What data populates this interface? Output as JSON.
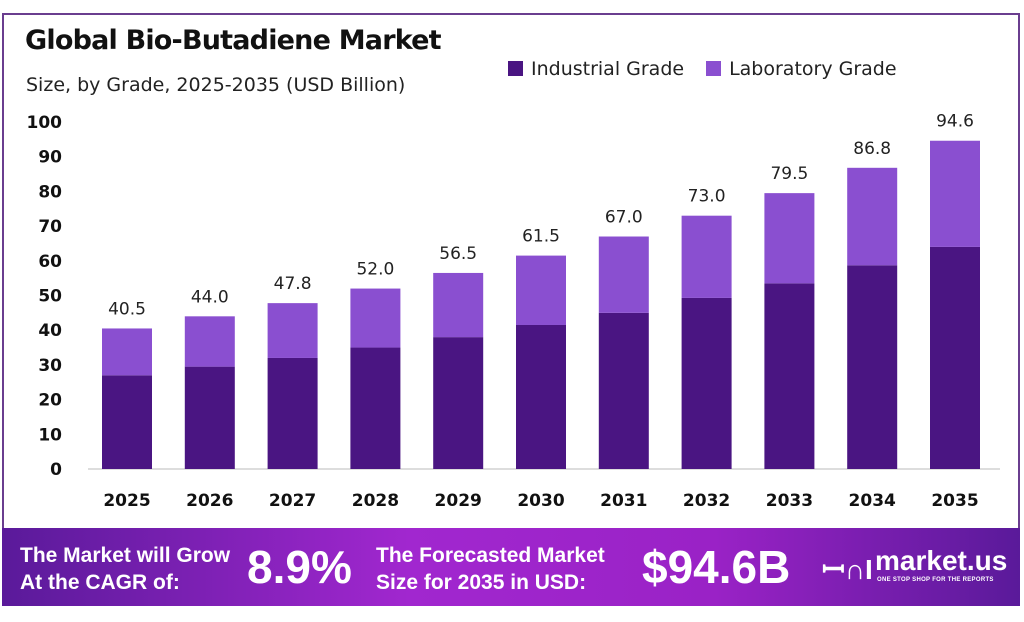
{
  "chart_data": {
    "type": "bar",
    "stacked": true,
    "title": "Global Bio-Butadiene Market",
    "subtitle": "Size, by Grade, 2025-2035 (USD Billion)",
    "categories": [
      "2025",
      "2026",
      "2027",
      "2028",
      "2029",
      "2030",
      "2031",
      "2032",
      "2033",
      "2034",
      "2035"
    ],
    "series": [
      {
        "name": "Industrial Grade",
        "color": "#4a1582",
        "values": [
          27.0,
          29.5,
          32.0,
          35.0,
          38.0,
          41.5,
          45.0,
          49.3,
          53.5,
          58.7,
          64.0
        ]
      },
      {
        "name": "Laboratory Grade",
        "color": "#8a4fd0",
        "values": [
          13.5,
          14.5,
          15.8,
          17.0,
          18.5,
          20.0,
          22.0,
          23.7,
          26.0,
          28.1,
          30.6
        ]
      }
    ],
    "totals": [
      "40.5",
      "44.0",
      "47.8",
      "52.0",
      "56.5",
      "61.5",
      "67.0",
      "73.0",
      "79.5",
      "86.8",
      "94.6"
    ],
    "ylim": [
      0,
      100
    ],
    "yticks": [
      "0",
      "10",
      "20",
      "30",
      "40",
      "50",
      "60",
      "70",
      "80",
      "90",
      "100"
    ],
    "grid": false,
    "legend": "top-right"
  },
  "footer": {
    "cagr_label_1": "The Market will Grow",
    "cagr_label_2": "At the CAGR of:",
    "cagr_value": "8.9%",
    "forecast_label_1": "The Forecasted Market",
    "forecast_label_2": "Size for 2035 in USD:",
    "forecast_value": "$94.6B",
    "brand": "market.us",
    "tagline": "ONE STOP SHOP FOR THE REPORTS"
  }
}
